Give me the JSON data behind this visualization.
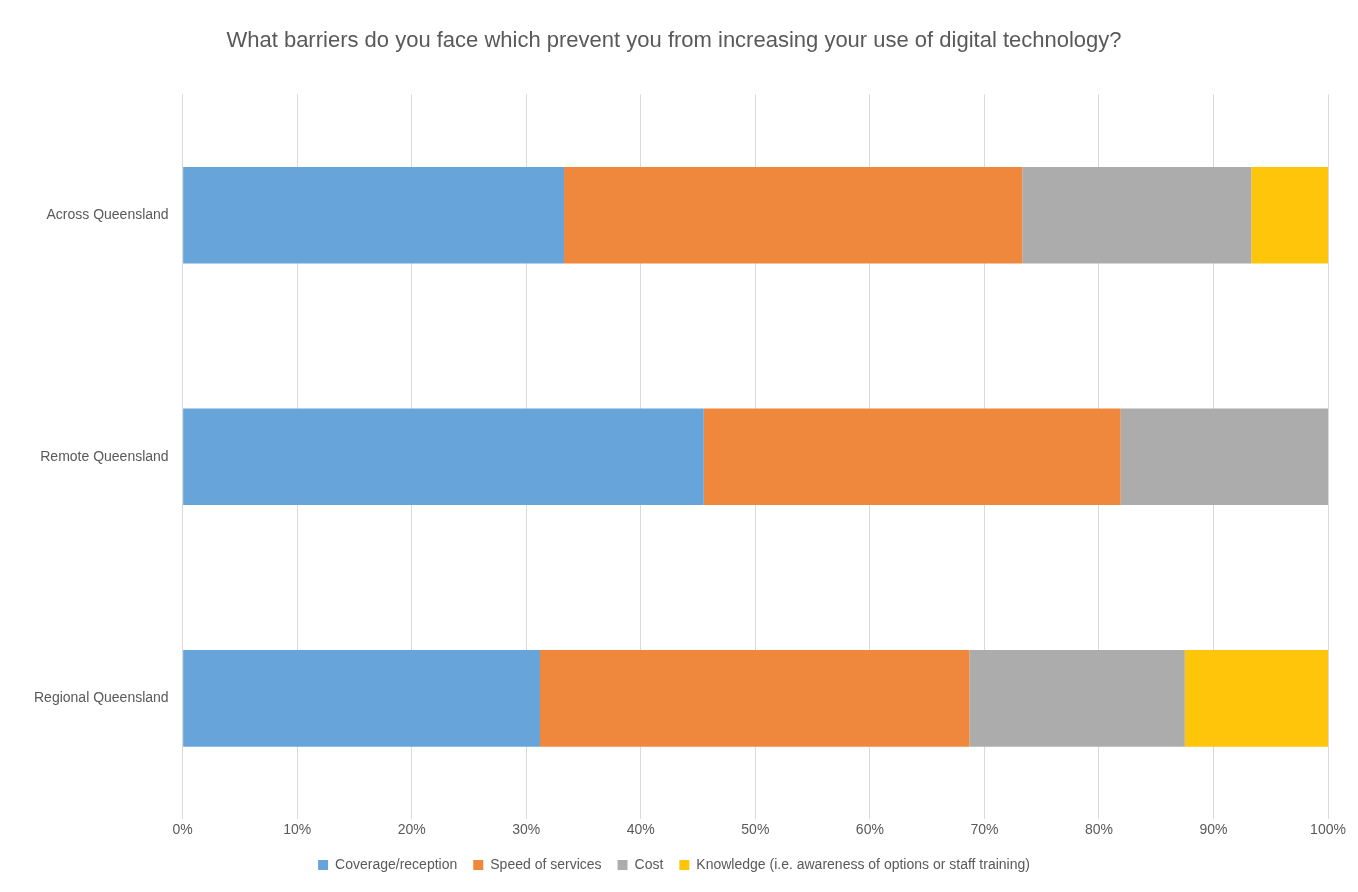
{
  "chart_data": {
    "type": "bar",
    "orientation": "horizontal",
    "stacked": true,
    "title": "What barriers do you face which prevent you from increasing your use of digital technology?",
    "categories": [
      "Across Queensland",
      "Remote Queensland",
      "Regional Queensland"
    ],
    "series": [
      {
        "name": "Coverage/reception",
        "color": "#67a4da",
        "values": [
          33.3,
          45.5,
          31.2
        ]
      },
      {
        "name": "Speed of services",
        "color": "#ef883d",
        "values": [
          40,
          36.4,
          37.5
        ]
      },
      {
        "name": "Cost",
        "color": "#acacac",
        "values": [
          20,
          18.1,
          18.8
        ]
      },
      {
        "name": "Knowledge (i.e. awareness of options or staff training)",
        "color": "#fec50a",
        "values": [
          6.7,
          0,
          12.5
        ]
      }
    ],
    "xlim": [
      0,
      100
    ],
    "xticks": [
      {
        "value": 0,
        "label": "0%"
      },
      {
        "value": 10,
        "label": "10%"
      },
      {
        "value": 20,
        "label": "20%"
      },
      {
        "value": 30,
        "label": "30%"
      },
      {
        "value": 40,
        "label": "40%"
      },
      {
        "value": 50,
        "label": "50%"
      },
      {
        "value": 60,
        "label": "60%"
      },
      {
        "value": 70,
        "label": "70%"
      },
      {
        "value": 80,
        "label": "80%"
      },
      {
        "value": 90,
        "label": "90%"
      },
      {
        "value": 100,
        "label": "100%"
      }
    ],
    "grid": "x",
    "legend": "bottom"
  }
}
